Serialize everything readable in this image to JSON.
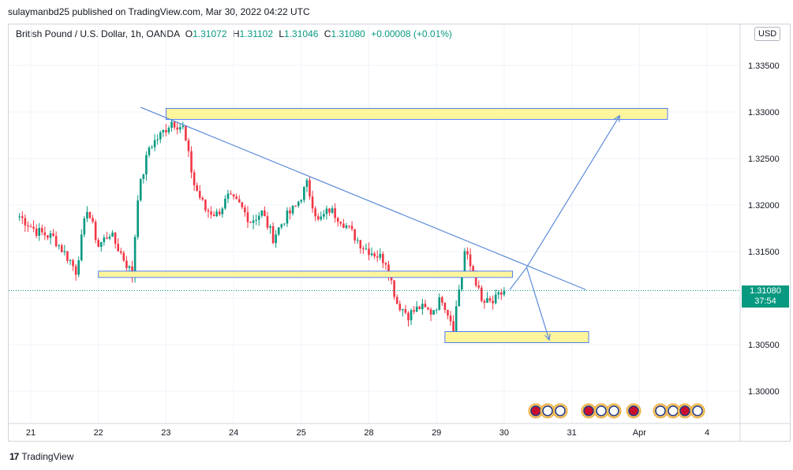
{
  "header": {
    "publisher": "sulaymanbd25 published on TradingView.com, Mar 30, 2022 04:22 UTC"
  },
  "legend": {
    "symbol": "British Pound / U.S. Dollar, 1h, OANDA",
    "open_label": "O",
    "open": "1.31072",
    "high_label": "H",
    "high": "1.31102",
    "low_label": "L",
    "low": "1.31046",
    "close_label": "C",
    "close": "1.31080",
    "change": "+0.00008 (+0.01%)"
  },
  "currency_button": "USD",
  "price_tag": {
    "price": "1.31080",
    "countdown": "37:54",
    "color": "#089981"
  },
  "footer": {
    "brand": "TradingView",
    "logo_text": "17"
  },
  "colors": {
    "up": "#089981",
    "down": "#f23645",
    "zone_fill": "#fff59d",
    "zone_stroke": "#2962ff",
    "trend": "#5b8bd9"
  },
  "chart_data": {
    "type": "candlestick",
    "instrument": "GBPUSD",
    "ylim": [
      1.2965,
      1.3375
    ],
    "y_ticks": [
      "1.33500",
      "1.33000",
      "1.32500",
      "1.32000",
      "1.31500",
      "1.31000",
      "1.30500",
      "1.30000"
    ],
    "y_tick_values": [
      1.335,
      1.33,
      1.325,
      1.32,
      1.315,
      1.31,
      1.305,
      1.3
    ],
    "x_ticks": [
      "21",
      "22",
      "23",
      "24",
      "25",
      "28",
      "29",
      "30",
      "31",
      "Apr",
      "4"
    ],
    "x_tick_index": [
      4,
      28,
      52,
      76,
      100,
      124,
      148,
      172,
      196,
      220,
      244
    ],
    "last_price": 1.3108,
    "candles": [],
    "key_points": [
      [
        0,
        1.3188
      ],
      [
        6,
        1.3172
      ],
      [
        12,
        1.3165
      ],
      [
        18,
        1.314
      ],
      [
        20,
        1.3129
      ],
      [
        24,
        1.3197
      ],
      [
        28,
        1.3156
      ],
      [
        32,
        1.317
      ],
      [
        36,
        1.3148
      ],
      [
        40,
        1.3125
      ],
      [
        42,
        1.321
      ],
      [
        46,
        1.3262
      ],
      [
        50,
        1.3275
      ],
      [
        54,
        1.329
      ],
      [
        58,
        1.3283
      ],
      [
        62,
        1.3222
      ],
      [
        66,
        1.3195
      ],
      [
        70,
        1.319
      ],
      [
        74,
        1.3208
      ],
      [
        78,
        1.32
      ],
      [
        82,
        1.3183
      ],
      [
        86,
        1.3192
      ],
      [
        90,
        1.3165
      ],
      [
        94,
        1.3185
      ],
      [
        98,
        1.3198
      ],
      [
        102,
        1.3222
      ],
      [
        106,
        1.3182
      ],
      [
        110,
        1.3195
      ],
      [
        114,
        1.3185
      ],
      [
        118,
        1.317
      ],
      [
        122,
        1.3155
      ],
      [
        126,
        1.3148
      ],
      [
        130,
        1.314
      ],
      [
        134,
        1.3095
      ],
      [
        138,
        1.3082
      ],
      [
        142,
        1.309
      ],
      [
        146,
        1.3085
      ],
      [
        150,
        1.31
      ],
      [
        154,
        1.307
      ],
      [
        158,
        1.315
      ],
      [
        162,
        1.3118
      ],
      [
        164,
        1.3095
      ],
      [
        168,
        1.3095
      ],
      [
        172,
        1.3108
      ]
    ],
    "annotations": {
      "zones": [
        {
          "from_idx": 52,
          "to_idx": 230,
          "high": 1.3298,
          "low": 1.3292
        },
        {
          "from_idx": 28,
          "to_idx": 175,
          "high": 1.3123,
          "low": 1.312
        },
        {
          "from_idx": 151,
          "to_idx": 202,
          "high": 1.3058,
          "low": 1.3053
        }
      ],
      "trendline": {
        "from": [
          43,
          1.3305
        ],
        "to": [
          201,
          1.3109
        ]
      },
      "arrows": [
        {
          "points": [
            [
              174,
              1.3109
            ],
            [
              180,
              1.3133
            ],
            [
              213,
              1.3296
            ]
          ]
        },
        {
          "points": [
            [
              180,
              1.3133
            ],
            [
              188,
              1.3055
            ]
          ]
        }
      ]
    }
  }
}
